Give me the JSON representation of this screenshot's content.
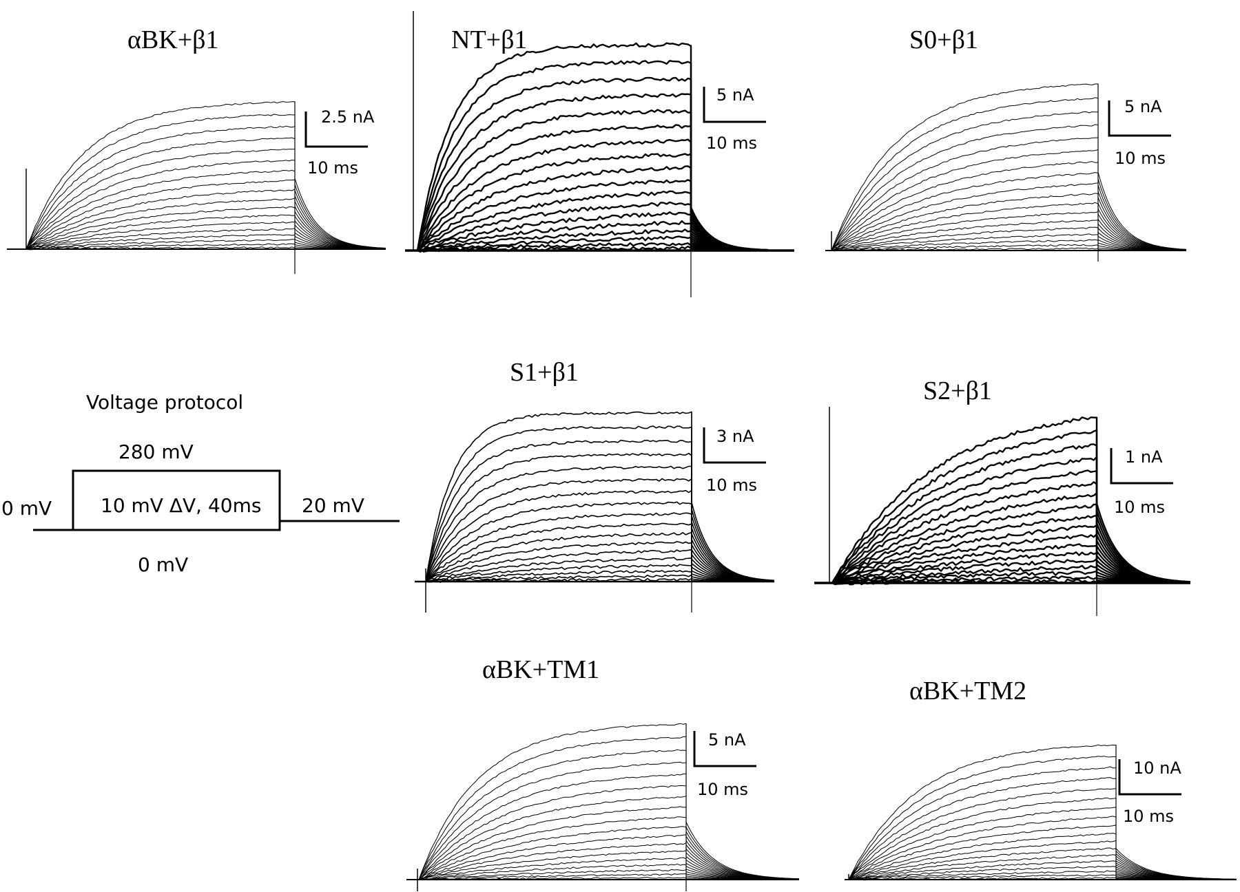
{
  "chart_data": [
    {
      "type": "line",
      "title": "αBK+β1",
      "scale_current": "2.5 nA",
      "scale_time": "10 ms",
      "traces": 18,
      "tail_fraction": 0.48,
      "trace_style": "thin"
    },
    {
      "type": "line",
      "title": "NT+β1",
      "scale_current": "5 nA",
      "scale_time": "10 ms",
      "traces": 18,
      "tail_fraction": 0.21,
      "trace_style": "bold"
    },
    {
      "type": "line",
      "title": "S0+β1",
      "scale_current": "5 nA",
      "scale_time": "10 ms",
      "traces": 18,
      "tail_fraction": 0.47,
      "trace_style": "thin"
    },
    {
      "type": "line",
      "title": "S1+β1",
      "scale_current": "3 nA",
      "scale_time": "10 ms",
      "traces": 18,
      "tail_fraction": 0.47,
      "trace_style": "medium"
    },
    {
      "type": "line",
      "title": "S2+β1",
      "scale_current": "1 nA",
      "scale_time": "10 ms",
      "traces": 18,
      "tail_fraction": 0.48,
      "trace_style": "bold"
    },
    {
      "type": "line",
      "title": "αBK+TM1",
      "scale_current": "5 nA",
      "scale_time": "10 ms",
      "traces": 18,
      "tail_fraction": 0.37,
      "trace_style": "thin"
    },
    {
      "type": "line",
      "title": "αBK+TM2",
      "scale_current": "10 nA",
      "scale_time": "10 ms",
      "traces": 18,
      "tail_fraction": 0.23,
      "trace_style": "thin"
    }
  ],
  "protocol": {
    "title": "Voltage protocol",
    "top_label": "280 mV",
    "left_label": "0 mV",
    "middle_label": "10 mV ΔV, 40ms",
    "right_label": "20 mV",
    "bottom_label": "0 mV"
  }
}
